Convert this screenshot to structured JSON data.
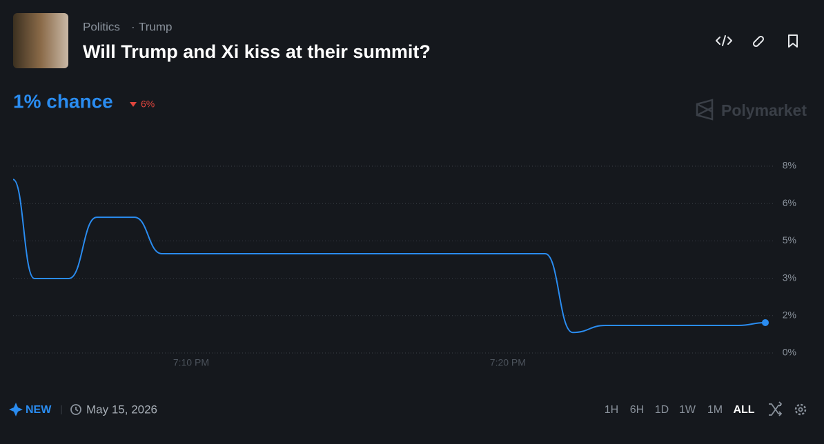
{
  "header": {
    "category": "Politics",
    "tag": "Trump",
    "title": "Will Trump and Xi kiss at their summit?"
  },
  "summary": {
    "chance": "1% chance",
    "change": "6%"
  },
  "brand": "Polymarket",
  "chart_data": {
    "type": "line",
    "color": "#2a8cf0",
    "x": [
      4.38,
      5.05,
      6.14,
      7.02,
      8.21,
      9.08,
      21.18,
      22.05,
      23.09,
      27.28,
      28.13
    ],
    "values": [
      7.43,
      3.19,
      3.19,
      5.81,
      5.81,
      4.25,
      4.25,
      0.88,
      1.18,
      1.18,
      1.3
    ],
    "xlim": [
      4.38,
      28.37
    ],
    "xticks": [
      {
        "value": 10,
        "label": "7:10 PM"
      },
      {
        "value": 20,
        "label": "7:20 PM"
      }
    ],
    "ylim": [
      0,
      8
    ],
    "yticks": [
      {
        "value": 0,
        "label": "0%"
      },
      {
        "value": 1.6,
        "label": "2%"
      },
      {
        "value": 3.2,
        "label": "3%"
      },
      {
        "value": 4.8,
        "label": "5%"
      },
      {
        "value": 6.4,
        "label": "6%"
      },
      {
        "value": 8,
        "label": "8%"
      }
    ],
    "grid": true
  },
  "footer": {
    "badge": "NEW",
    "date": "May 15, 2026",
    "ranges": [
      "1H",
      "6H",
      "1D",
      "1W",
      "1M",
      "ALL"
    ]
  }
}
